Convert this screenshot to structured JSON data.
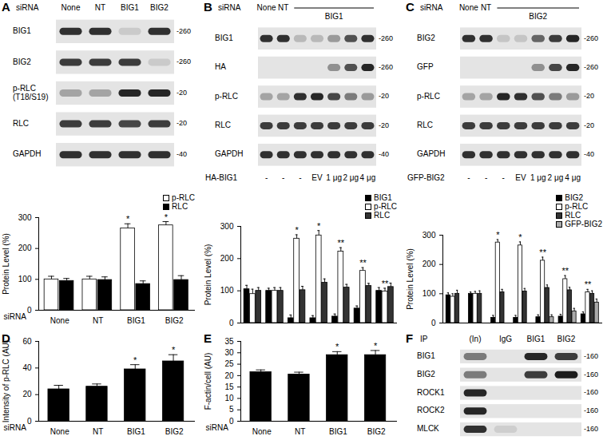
{
  "chart_data": [
    {
      "type": "bar",
      "categories": [
        "None",
        "NT",
        "BIG1",
        "BIG2"
      ],
      "x_label": "siRNA",
      "y_label": "Protein Level (%)",
      "ylim": [
        0,
        300
      ],
      "yticks": [
        0,
        100,
        200,
        300
      ],
      "legend": "top-right",
      "series": [
        {
          "name": "p-RLC",
          "color": "#ffffff",
          "values": [
            100,
            100,
            265,
            275
          ],
          "errors": [
            10,
            10,
            15,
            12
          ],
          "significance": [
            null,
            null,
            "*",
            "*"
          ]
        },
        {
          "name": "RLC",
          "color": "#000000",
          "values": [
            95,
            98,
            85,
            98
          ],
          "errors": [
            8,
            10,
            10,
            14
          ],
          "significance": [
            null,
            null,
            null,
            null
          ]
        }
      ]
    },
    {
      "type": "bar",
      "categories": [
        null,
        null,
        null,
        null,
        null,
        null,
        null
      ],
      "y_label": "Protein Level (%)",
      "ylim": [
        0,
        300
      ],
      "yticks": [
        0,
        100,
        200,
        300
      ],
      "legend": "top-right",
      "series": [
        {
          "name": "BIG1",
          "color": "#000000",
          "values": [
            105,
            100,
            15,
            15,
            20,
            45,
            100
          ],
          "errors": [
            12,
            8,
            10,
            8,
            8,
            8,
            10
          ],
          "significance": [
            null,
            null,
            null,
            null,
            null,
            null,
            null
          ]
        },
        {
          "name": "p-RLC",
          "color": "#ffffff",
          "values": [
            90,
            100,
            262,
            272,
            222,
            162,
            98
          ],
          "errors": [
            15,
            10,
            12,
            15,
            12,
            10,
            10
          ],
          "significance": [
            null,
            null,
            "*",
            "*",
            "**",
            "**",
            "**"
          ]
        },
        {
          "name": "RLC",
          "color": "#333333",
          "values": [
            100,
            100,
            102,
            125,
            110,
            115,
            112
          ],
          "errors": [
            10,
            10,
            12,
            12,
            10,
            8,
            12
          ],
          "significance": [
            null,
            null,
            null,
            null,
            null,
            null,
            null
          ]
        }
      ]
    },
    {
      "type": "bar",
      "categories": [
        null,
        null,
        null,
        null,
        null,
        null,
        null
      ],
      "y_label": "Protein Level (%)",
      "ylim": [
        0,
        300
      ],
      "yticks": [
        0,
        100,
        200,
        300
      ],
      "legend": "top-right",
      "series": [
        {
          "name": "BIG2",
          "color": "#000000",
          "values": [
            95,
            100,
            18,
            18,
            20,
            22,
            30
          ],
          "errors": [
            8,
            6,
            8,
            8,
            8,
            8,
            8
          ],
          "significance": [
            null,
            null,
            null,
            null,
            null,
            null,
            null
          ]
        },
        {
          "name": "p-RLC",
          "color": "#ffffff",
          "values": [
            90,
            100,
            275,
            265,
            213,
            150,
            105
          ],
          "errors": [
            10,
            8,
            10,
            12,
            12,
            12,
            10
          ],
          "significance": [
            null,
            null,
            "*",
            "*",
            "**",
            "**",
            "**"
          ]
        },
        {
          "name": "RLC",
          "color": "#333333",
          "values": [
            100,
            100,
            105,
            108,
            120,
            112,
            100
          ],
          "errors": [
            12,
            10,
            10,
            10,
            10,
            10,
            10
          ],
          "significance": [
            null,
            null,
            null,
            null,
            null,
            null,
            null
          ]
        },
        {
          "name": "GFP-BIG2",
          "color": "#aaaaaa",
          "values": [
            null,
            null,
            null,
            null,
            20,
            40,
            70
          ],
          "errors": [
            null,
            null,
            null,
            null,
            8,
            10,
            12
          ],
          "significance": [
            null,
            null,
            null,
            null,
            null,
            null,
            null
          ]
        }
      ]
    },
    {
      "type": "bar",
      "title": "D",
      "categories": [
        "None",
        "NT",
        "BIG1",
        "BIG2"
      ],
      "x_label": "siRNA",
      "y_label": "Intensity of p-RLC (AU)",
      "ylim": [
        0,
        60
      ],
      "yticks": [
        0,
        20,
        40,
        60
      ],
      "color": "#000000",
      "values": [
        24,
        26,
        39,
        45
      ],
      "errors": [
        3,
        2,
        3.5,
        5
      ],
      "significance": [
        null,
        null,
        "*",
        "*"
      ]
    },
    {
      "type": "bar",
      "title": "E",
      "categories": [
        "None",
        "NT",
        "BIG1",
        "BIG2"
      ],
      "x_label": "siRNA",
      "y_label": "F-actin/cell (AU)",
      "ylim": [
        0,
        35
      ],
      "yticks": [
        0,
        5,
        10,
        15,
        20,
        25,
        30,
        35
      ],
      "color": "#000000",
      "values": [
        21.5,
        20.5,
        29,
        29
      ],
      "errors": [
        1,
        1,
        1.5,
        2
      ],
      "significance": [
        null,
        null,
        "*",
        "*"
      ]
    }
  ],
  "blots": [
    {
      "label": "A",
      "header_label": "siRNA",
      "lanes": [
        "None",
        "NT",
        "BIG1",
        "BIG2"
      ],
      "rows": [
        {
          "name": "BIG1",
          "mw": "-260",
          "bands": [
            0.85,
            0.85,
            0.12,
            0.85
          ]
        },
        {
          "name": "BIG2",
          "mw": "-260",
          "bands": [
            0.8,
            0.8,
            0.8,
            0.12
          ]
        },
        {
          "name": "p-RLC\n(T18/S19)",
          "mw": "-20",
          "bands": [
            0.3,
            0.3,
            0.9,
            0.9
          ]
        },
        {
          "name": "RLC",
          "mw": "-20",
          "bands": [
            0.8,
            0.8,
            0.75,
            0.8
          ]
        },
        {
          "name": "GAPDH",
          "mw": "-40",
          "bands": [
            0.85,
            0.85,
            0.85,
            0.85
          ]
        }
      ]
    },
    {
      "label": "B",
      "header_label": "siRNA",
      "lanes": [
        "None",
        "NT",
        "BIG1",
        "BIG1",
        "BIG1",
        "BIG1",
        "BIG1"
      ],
      "rows": [
        {
          "name": "BIG1",
          "mw": "-260",
          "bands": [
            0.85,
            0.85,
            0.2,
            0.2,
            0.35,
            0.7,
            0.85
          ]
        },
        {
          "name": "HA",
          "mw": "-260",
          "bands": [
            0,
            0,
            0,
            0,
            0.4,
            0.7,
            0.9
          ]
        },
        {
          "name": "p-RLC",
          "mw": "-20",
          "bands": [
            0.3,
            0.3,
            0.85,
            0.9,
            0.75,
            0.5,
            0.35
          ]
        },
        {
          "name": "RLC",
          "mw": "-20",
          "bands": [
            0.8,
            0.8,
            0.8,
            0.8,
            0.8,
            0.8,
            0.8
          ]
        },
        {
          "name": "GAPDH",
          "mw": "-40",
          "bands": [
            0.85,
            0.85,
            0.85,
            0.85,
            0.85,
            0.85,
            0.85
          ]
        }
      ],
      "footer": {
        "label": "HA-BIG1",
        "values": [
          "-",
          "-",
          "-",
          "EV",
          "1 μg",
          "2 μg",
          "4 μg"
        ]
      }
    },
    {
      "label": "C",
      "header_label": "siRNA",
      "lanes": [
        "None",
        "NT",
        "BIG2",
        "BIG2",
        "BIG2",
        "BIG2",
        "BIG2"
      ],
      "rows": [
        {
          "name": "BIG2",
          "mw": "-260",
          "bands": [
            0.85,
            0.85,
            0.15,
            0.15,
            0.6,
            0.8,
            0.9
          ]
        },
        {
          "name": "GFP",
          "mw": "-260",
          "bands": [
            0,
            0,
            0,
            0,
            0.4,
            0.75,
            0.9
          ]
        },
        {
          "name": "p-RLC",
          "mw": "-20",
          "bands": [
            0.3,
            0.3,
            0.9,
            0.85,
            0.7,
            0.5,
            0.35
          ]
        },
        {
          "name": "RLC",
          "mw": "-20",
          "bands": [
            0.8,
            0.8,
            0.8,
            0.8,
            0.8,
            0.8,
            0.8
          ]
        },
        {
          "name": "GAPDH",
          "mw": "-40",
          "bands": [
            0.85,
            0.85,
            0.85,
            0.85,
            0.85,
            0.85,
            0.85
          ]
        }
      ],
      "footer": {
        "label": "GFP-BIG2",
        "values": [
          "-",
          "-",
          "-",
          "EV",
          "1 μg",
          "2 μg",
          "4 μg"
        ]
      }
    },
    {
      "label": "F",
      "header_label": "IP",
      "lanes": [
        "(In)",
        "IgG",
        "BIG1",
        "BIG2"
      ],
      "rows": [
        {
          "name": "BIG1",
          "mw": "-160",
          "bands": [
            0.5,
            0,
            0.9,
            0.8
          ]
        },
        {
          "name": "BIG2",
          "mw": "-160",
          "bands": [
            0.5,
            0,
            0.8,
            0.95
          ]
        },
        {
          "name": "ROCK1",
          "mw": "-160",
          "bands": [
            0.9,
            0,
            0,
            0
          ]
        },
        {
          "name": "ROCK2",
          "mw": "-160",
          "bands": [
            0.9,
            0,
            0,
            0
          ]
        },
        {
          "name": "MLCK",
          "mw": "-160",
          "bands": [
            0.85,
            0.1,
            0,
            0
          ]
        }
      ]
    }
  ]
}
